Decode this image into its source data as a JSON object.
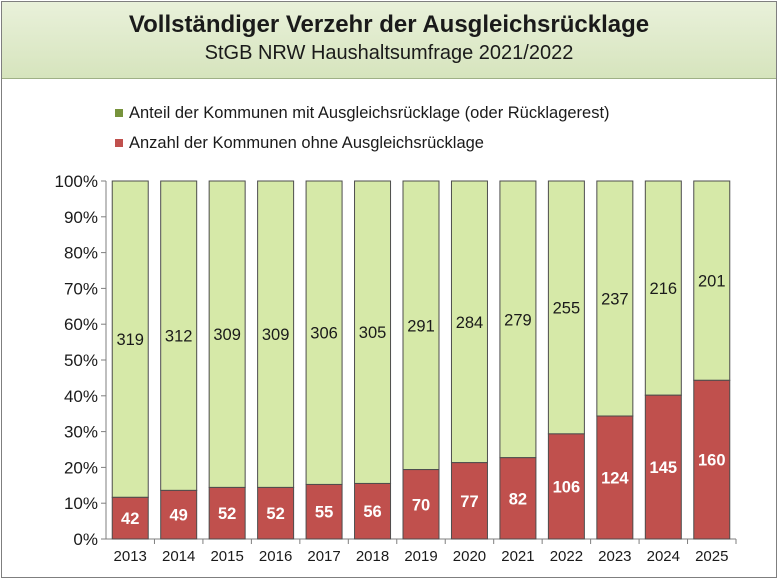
{
  "header": {
    "title": "Vollständiger Verzehr der Ausgleichsrücklage",
    "subtitle": "StGB NRW Haushaltsumfrage 2021/2022"
  },
  "colors": {
    "green": "#d6e9a8",
    "red": "#c0504d",
    "legend_green": "#77933c",
    "legend_red": "#c0504d"
  },
  "chart_data": {
    "type": "bar",
    "stacked": "percent",
    "categories": [
      "2013",
      "2014",
      "2015",
      "2016",
      "2017",
      "2018",
      "2019",
      "2020",
      "2021",
      "2022",
      "2023",
      "2024",
      "2025"
    ],
    "series": [
      {
        "name": "Anzahl der Kommunen ohne Ausgleichsrücklage",
        "color": "#c0504d",
        "values": [
          42,
          49,
          52,
          52,
          55,
          56,
          70,
          77,
          82,
          106,
          124,
          145,
          160
        ]
      },
      {
        "name": "Anteil der Kommunen mit Ausgleichsrücklage (oder Rücklagerest)",
        "color": "#d6e9a8",
        "values": [
          319,
          312,
          309,
          309,
          306,
          305,
          291,
          284,
          279,
          255,
          237,
          216,
          201
        ]
      }
    ],
    "legend_order": [
      1,
      0
    ],
    "yticks": [
      "0%",
      "10%",
      "20%",
      "30%",
      "40%",
      "50%",
      "60%",
      "70%",
      "80%",
      "90%",
      "100%"
    ],
    "ylim": [
      0,
      100
    ],
    "legend_position": "top",
    "grid": false
  }
}
